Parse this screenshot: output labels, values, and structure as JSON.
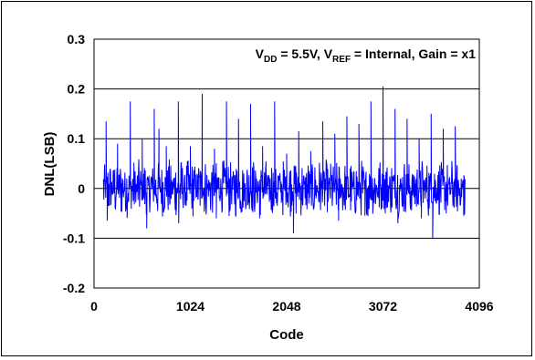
{
  "chart_data": {
    "type": "line",
    "xlabel": "Code",
    "ylabel": "DNL(LSB)",
    "annotation": {
      "parts": [
        {
          "text": "V",
          "sub": false
        },
        {
          "text": "DD",
          "sub": true
        },
        {
          "text": " = 5.5V,  V",
          "sub": false
        },
        {
          "text": "REF",
          "sub": true
        },
        {
          "text": " = Internal,  Gain = x1",
          "sub": false
        }
      ]
    },
    "xlim": [
      0,
      4096
    ],
    "ylim": [
      -0.2,
      0.3
    ],
    "x_ticks": [
      0,
      1024,
      2048,
      3072,
      4096
    ],
    "x_tick_labels": [
      "0",
      "1024",
      "2048",
      "3072",
      "4096"
    ],
    "y_ticks": [
      -0.2,
      -0.1,
      0,
      0.1,
      0.2,
      0.3
    ],
    "y_tick_labels": [
      "-0.2",
      "-0.1",
      "0",
      "0.1",
      "0.2",
      "0.3"
    ],
    "grid": {
      "y": true,
      "x": false
    },
    "series": [
      {
        "color": "#0000ff",
        "x_range": [
          100,
          3950
        ],
        "typical_range": [
          -0.06,
          0.06
        ],
        "peaks": [
          {
            "x": 128,
            "y": 0.135
          },
          {
            "x": 250,
            "y": 0.09
          },
          {
            "x": 385,
            "y": 0.175
          },
          {
            "x": 512,
            "y": 0.1
          },
          {
            "x": 640,
            "y": 0.16
          },
          {
            "x": 690,
            "y": 0.12
          },
          {
            "x": 768,
            "y": 0.085
          },
          {
            "x": 896,
            "y": 0.175
          },
          {
            "x": 1024,
            "y": 0.085
          },
          {
            "x": 1150,
            "y": 0.19
          },
          {
            "x": 1280,
            "y": 0.08
          },
          {
            "x": 1408,
            "y": 0.175
          },
          {
            "x": 1536,
            "y": 0.14
          },
          {
            "x": 1664,
            "y": 0.17
          },
          {
            "x": 1792,
            "y": 0.085
          },
          {
            "x": 1920,
            "y": 0.175
          },
          {
            "x": 2048,
            "y": 0.07
          },
          {
            "x": 2176,
            "y": 0.115
          },
          {
            "x": 2304,
            "y": 0.075
          },
          {
            "x": 2432,
            "y": 0.135
          },
          {
            "x": 2560,
            "y": 0.11
          },
          {
            "x": 2688,
            "y": 0.145
          },
          {
            "x": 2816,
            "y": 0.13
          },
          {
            "x": 2944,
            "y": 0.175
          },
          {
            "x": 3072,
            "y": 0.205
          },
          {
            "x": 3200,
            "y": 0.16
          },
          {
            "x": 3328,
            "y": 0.14
          },
          {
            "x": 3456,
            "y": 0.1
          },
          {
            "x": 3584,
            "y": 0.15
          },
          {
            "x": 3712,
            "y": 0.12
          },
          {
            "x": 3840,
            "y": 0.125
          }
        ],
        "troughs": [
          {
            "x": 140,
            "y": -0.065
          },
          {
            "x": 560,
            "y": -0.08
          },
          {
            "x": 900,
            "y": -0.07
          },
          {
            "x": 1300,
            "y": -0.06
          },
          {
            "x": 1760,
            "y": -0.06
          },
          {
            "x": 2120,
            "y": -0.09
          },
          {
            "x": 2600,
            "y": -0.065
          },
          {
            "x": 2880,
            "y": -0.055
          },
          {
            "x": 3230,
            "y": -0.07
          },
          {
            "x": 3480,
            "y": -0.06
          },
          {
            "x": 3600,
            "y": -0.1
          },
          {
            "x": 3930,
            "y": -0.055
          }
        ]
      }
    ]
  }
}
